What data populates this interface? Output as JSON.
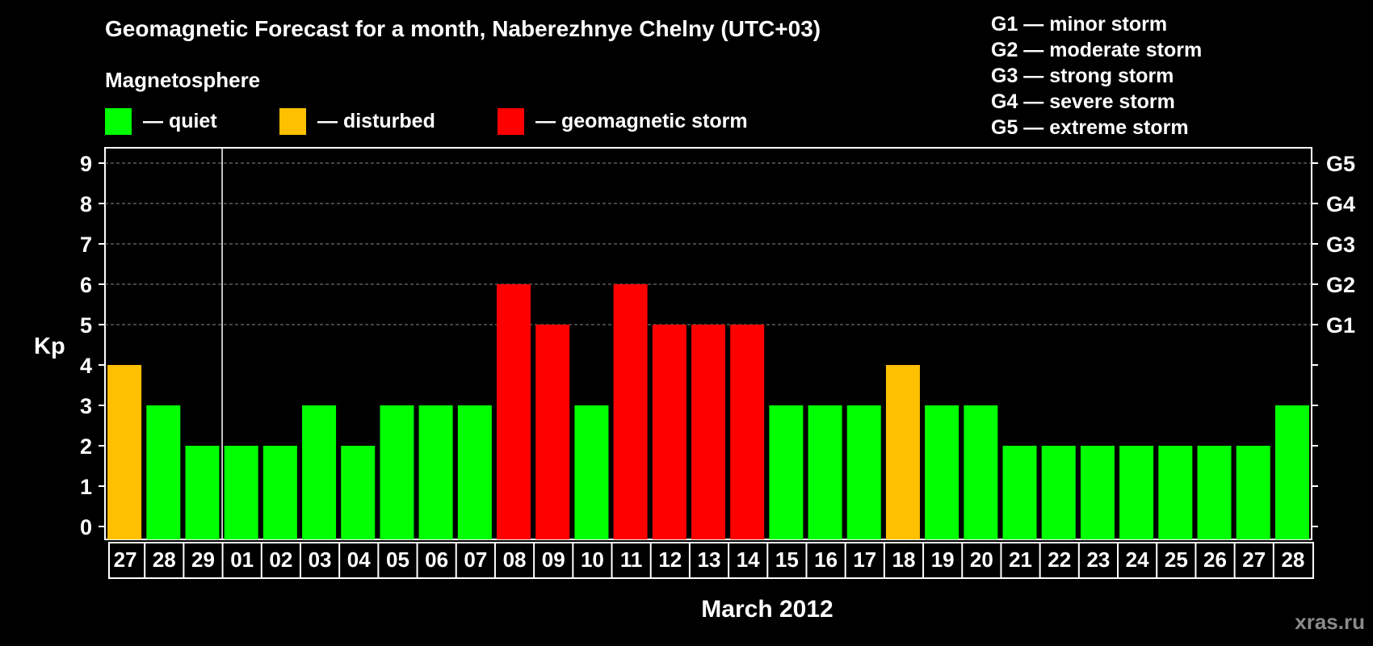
{
  "chart_data": {
    "type": "bar",
    "title": "Geomagnetic Forecast for a month, Naberezhnye Chelny (UTC+03)",
    "xlabel": "March 2012",
    "ylabel": "Kp",
    "ylim": [
      0,
      9
    ],
    "yticks": [
      "0",
      "1",
      "2",
      "3",
      "4",
      "5",
      "6",
      "7",
      "8",
      "9"
    ],
    "right_axis_labels": [
      {
        "value": 5,
        "label": "G1"
      },
      {
        "value": 6,
        "label": "G2"
      },
      {
        "value": 7,
        "label": "G3"
      },
      {
        "value": 8,
        "label": "G4"
      },
      {
        "value": 9,
        "label": "G5"
      }
    ],
    "grid": "dashed lines at Kp 5-9",
    "categories": [
      "27",
      "28",
      "29",
      "01",
      "02",
      "03",
      "04",
      "05",
      "06",
      "07",
      "08",
      "09",
      "10",
      "11",
      "12",
      "13",
      "14",
      "15",
      "16",
      "17",
      "18",
      "19",
      "20",
      "21",
      "22",
      "23",
      "24",
      "25",
      "26",
      "27",
      "28"
    ],
    "values": [
      4,
      3,
      2,
      2,
      2,
      3,
      2,
      3,
      3,
      3,
      6,
      5,
      3,
      6,
      5,
      5,
      5,
      3,
      3,
      3,
      4,
      3,
      3,
      2,
      2,
      2,
      2,
      2,
      2,
      2,
      3
    ],
    "month_separator_after_index": 2,
    "thresholds": {
      "disturbed": 4,
      "storm": 5
    }
  },
  "legend": {
    "heading": "Magnetosphere",
    "items": [
      {
        "key": "quiet",
        "label": "— quiet",
        "color": "#00ff00"
      },
      {
        "key": "disturbed",
        "label": "— disturbed",
        "color": "#ffc000"
      },
      {
        "key": "storm",
        "label": "— geomagnetic storm",
        "color": "#ff0000"
      }
    ]
  },
  "g_levels": [
    {
      "label": "G1 — minor storm"
    },
    {
      "label": "G2 — moderate storm"
    },
    {
      "label": "G3 — strong storm"
    },
    {
      "label": "G4 — severe storm"
    },
    {
      "label": "G5 — extreme storm"
    }
  ],
  "watermark": "xras.ru"
}
